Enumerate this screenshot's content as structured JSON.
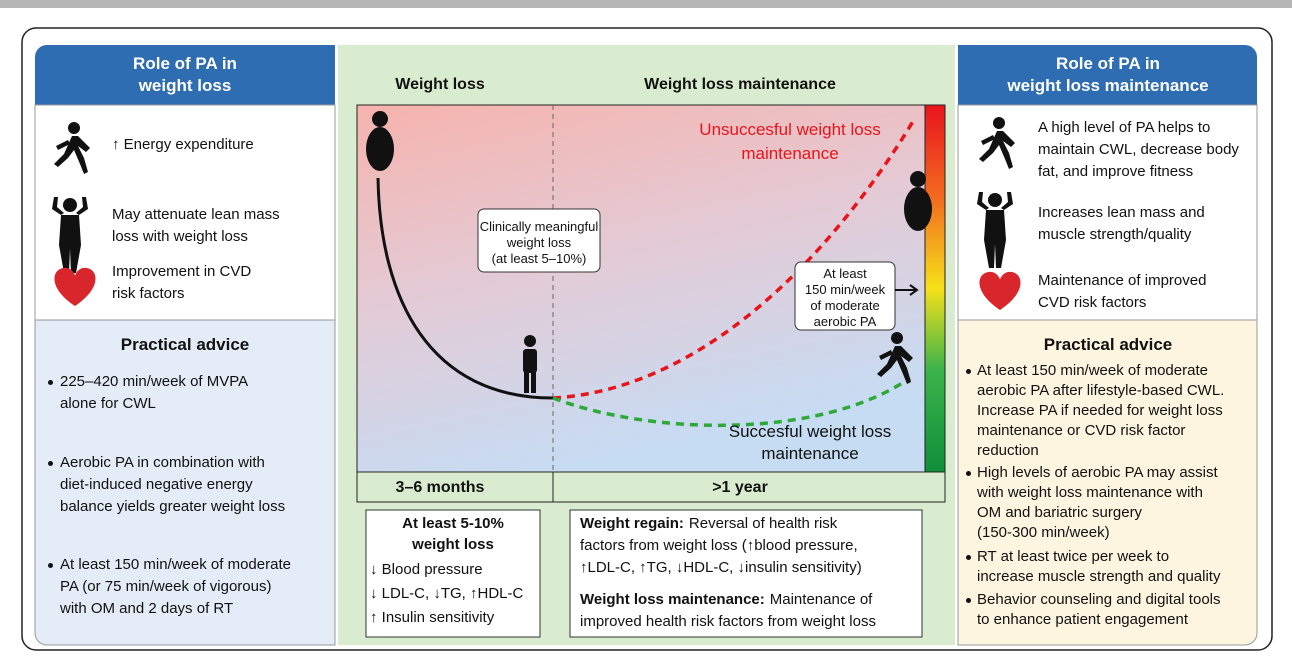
{
  "left_panel": {
    "title_lines": [
      "Role of PA in",
      "weight loss"
    ],
    "items": [
      {
        "lines": [
          "↑ Energy expenditure"
        ]
      },
      {
        "lines": [
          "May attenuate lean mass",
          "loss with weight loss"
        ]
      },
      {
        "lines": [
          "Improvement in CVD",
          "risk factors"
        ]
      }
    ],
    "advice_title": "Practical advice",
    "advice": [
      {
        "lines": [
          "225–420 min/week of MVPA",
          "alone for CWL"
        ]
      },
      {
        "lines": [
          "Aerobic PA in combination with",
          "diet-induced negative energy",
          "balance yields greater weight loss"
        ]
      },
      {
        "lines": [
          "At least 150 min/week of moderate",
          "PA (or 75 min/week of vigorous)",
          "with OM and 2 days of RT"
        ]
      }
    ]
  },
  "middle_panel": {
    "phases": [
      "Weight loss",
      "Weight loss maintenance"
    ],
    "clinical_box": [
      "Clinically meaningful",
      "weight loss",
      "(at least 5–10%)"
    ],
    "pa_box": [
      "At least",
      "150 min/week",
      "of moderate",
      "aerobic PA"
    ],
    "unsuccessful": [
      "Unsuccesful weight loss",
      "maintenance"
    ],
    "successful": [
      "Succesful weight loss",
      "maintenance"
    ],
    "periods": [
      "3–6 months",
      ">1 year"
    ],
    "loss_box": {
      "title_lines": [
        "At least 5-10%",
        "weight loss"
      ],
      "lines": [
        "↓ Blood pressure",
        "↓ LDL-C, ↓TG, ↑HDL-C",
        "↑ Insulin sensitivity"
      ]
    },
    "maintenance_box": [
      {
        "label": "Weight regain:",
        "lines": [
          "Reversal of health risk",
          "factors from weight loss (↑blood pressure,",
          "↑LDL-C, ↑TG, ↓HDL-C, ↓insulin sensitivity)"
        ]
      },
      {
        "label": "Weight loss maintenance:",
        "lines": [
          "Maintenance of",
          "improved health risk factors from weight loss"
        ]
      }
    ]
  },
  "right_panel": {
    "title_lines": [
      "Role of PA in",
      "weight loss maintenance"
    ],
    "items": [
      {
        "lines": [
          "A high level of PA helps to",
          "maintain CWL, decrease body",
          "fat, and improve fitness"
        ]
      },
      {
        "lines": [
          "Increases lean mass and",
          "muscle strength/quality"
        ]
      },
      {
        "lines": [
          "Maintenance of improved",
          "CVD risk factors"
        ]
      }
    ],
    "advice_title": "Practical advice",
    "advice": [
      {
        "lines": [
          "At least 150 min/week of moderate",
          "aerobic PA after lifestyle-based CWL.",
          "Increase PA if needed for weight loss",
          "maintenance or CVD risk factor",
          "reduction"
        ]
      },
      {
        "lines": [
          "High levels of aerobic PA may assist",
          "with weight loss maintenance with",
          "OM and bariatric surgery",
          "(150-300 min/week)"
        ]
      },
      {
        "lines": [
          "RT at least twice per week to",
          "increase muscle strength and quality"
        ]
      },
      {
        "lines": [
          "Behavior counseling and digital tools",
          "to enhance patient engagement"
        ]
      }
    ]
  }
}
